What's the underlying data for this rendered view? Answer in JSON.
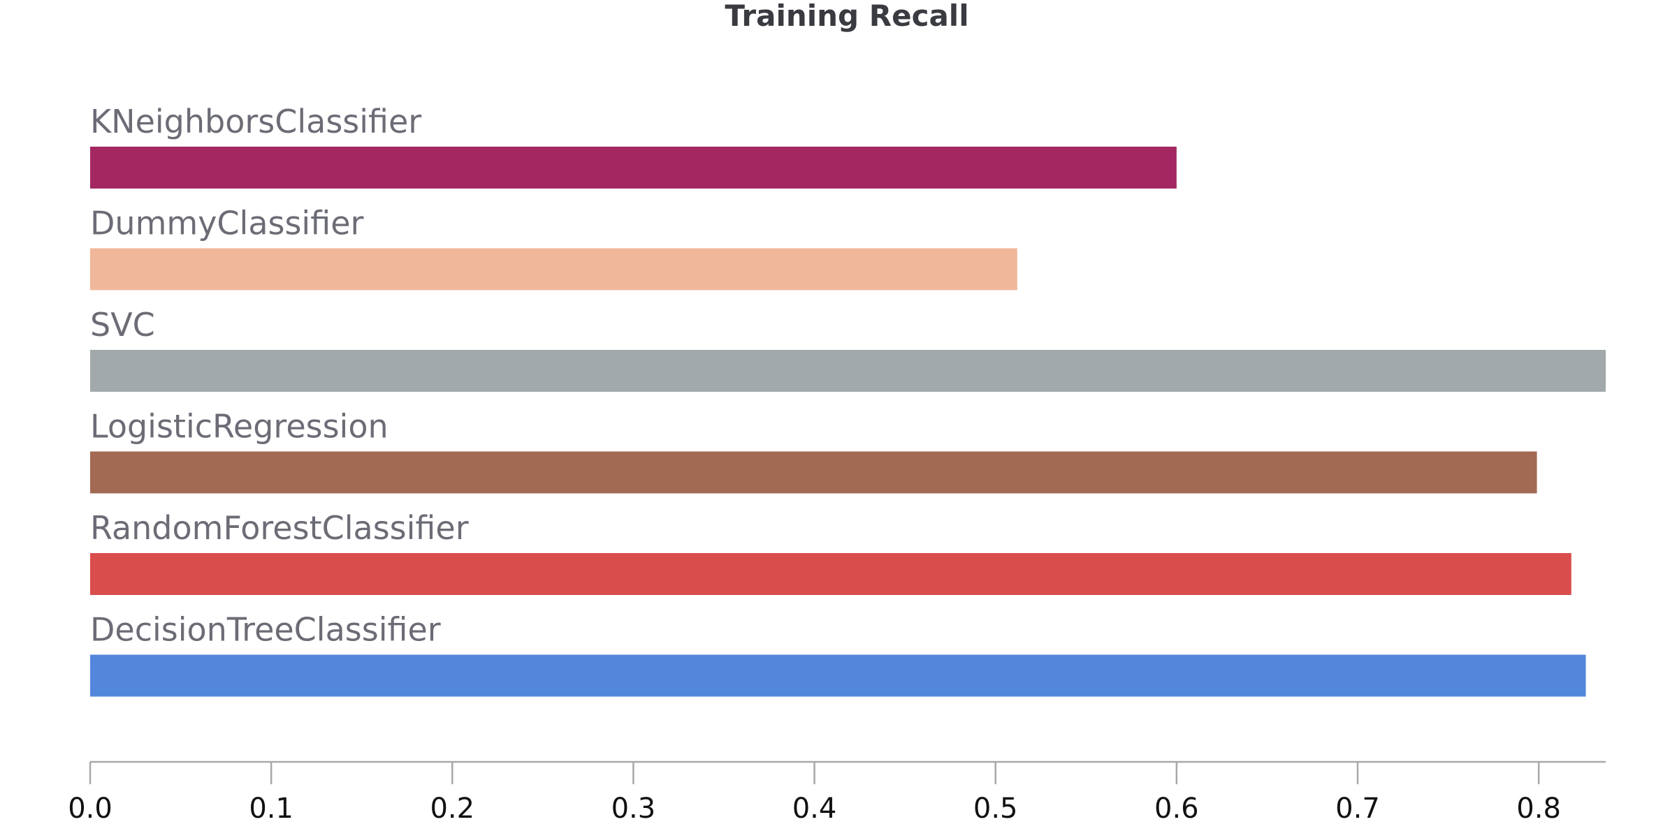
{
  "chart_data": {
    "type": "bar",
    "orientation": "horizontal",
    "title": "Training Recall",
    "xlabel": "",
    "ylabel": "",
    "categories": [
      "KNeighborsClassifier",
      "DummyClassifier",
      "SVC",
      "LogisticRegression",
      "RandomForestClassifier",
      "DecisionTreeClassifier"
    ],
    "values": [
      0.6,
      0.512,
      0.837,
      0.799,
      0.818,
      0.826
    ],
    "colors": [
      "#a32862",
      "#f0b79a",
      "#a1a9ab",
      "#a26a53",
      "#d94d4c",
      "#5387dc"
    ],
    "xlim": [
      0,
      0.837
    ],
    "xticks": [
      "0.0",
      "0.1",
      "0.2",
      "0.3",
      "0.4",
      "0.5",
      "0.6",
      "0.7",
      "0.8"
    ],
    "grid": false,
    "legend": "none"
  }
}
